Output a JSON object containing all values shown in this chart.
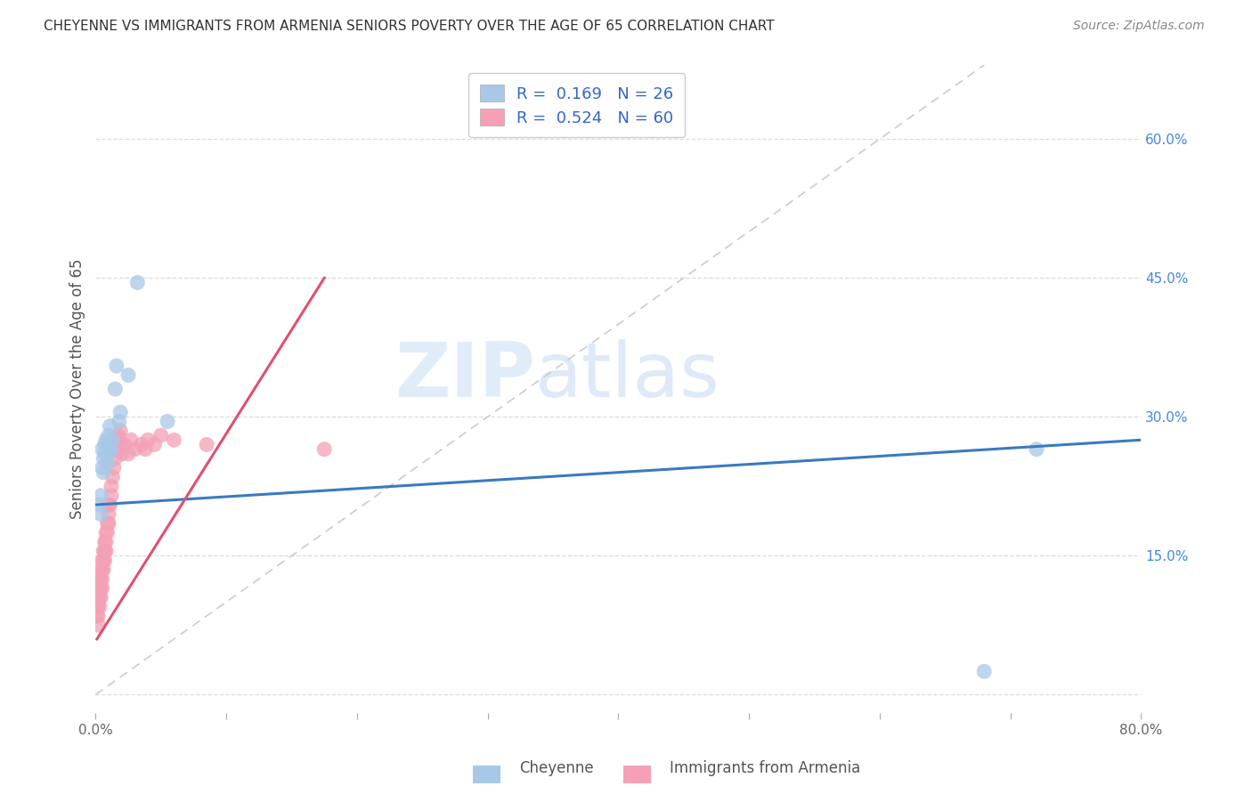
{
  "title": "CHEYENNE VS IMMIGRANTS FROM ARMENIA SENIORS POVERTY OVER THE AGE OF 65 CORRELATION CHART",
  "source": "Source: ZipAtlas.com",
  "ylabel": "Seniors Poverty Over the Age of 65",
  "legend_label1": "Cheyenne",
  "legend_label2": "Immigrants from Armenia",
  "R1": 0.169,
  "N1": 26,
  "R2": 0.524,
  "N2": 60,
  "xlim": [
    0.0,
    0.8
  ],
  "ylim": [
    -0.02,
    0.68
  ],
  "ytick_right_vals": [
    0.15,
    0.3,
    0.45,
    0.6
  ],
  "ytick_right_labels": [
    "15.0%",
    "30.0%",
    "45.0%",
    "60.0%"
  ],
  "color_cheyenne": "#a8c8e8",
  "color_armenia": "#f4a0b5",
  "color_line_cheyenne": "#3a7abf",
  "color_line_armenia": "#e05070",
  "color_diagonal": "#cccccc",
  "background": "#ffffff",
  "grid_color": "#dddddd",
  "cheyenne_x": [
    0.003,
    0.004,
    0.004,
    0.005,
    0.005,
    0.006,
    0.006,
    0.007,
    0.007,
    0.008,
    0.009,
    0.009,
    0.01,
    0.01,
    0.011,
    0.012,
    0.013,
    0.015,
    0.016,
    0.018,
    0.019,
    0.025,
    0.032,
    0.055,
    0.68,
    0.72
  ],
  "cheyenne_y": [
    0.205,
    0.195,
    0.215,
    0.265,
    0.245,
    0.255,
    0.24,
    0.26,
    0.27,
    0.275,
    0.265,
    0.25,
    0.28,
    0.26,
    0.29,
    0.265,
    0.275,
    0.33,
    0.355,
    0.295,
    0.305,
    0.345,
    0.445,
    0.295,
    0.025,
    0.265
  ],
  "armenia_x": [
    0.001,
    0.001,
    0.001,
    0.001,
    0.001,
    0.002,
    0.002,
    0.002,
    0.002,
    0.002,
    0.003,
    0.003,
    0.003,
    0.003,
    0.004,
    0.004,
    0.004,
    0.004,
    0.005,
    0.005,
    0.005,
    0.005,
    0.006,
    0.006,
    0.006,
    0.007,
    0.007,
    0.007,
    0.008,
    0.008,
    0.008,
    0.009,
    0.009,
    0.01,
    0.01,
    0.01,
    0.011,
    0.012,
    0.012,
    0.013,
    0.014,
    0.015,
    0.016,
    0.017,
    0.017,
    0.018,
    0.019,
    0.02,
    0.022,
    0.025,
    0.027,
    0.03,
    0.035,
    0.038,
    0.04,
    0.045,
    0.05,
    0.06,
    0.085,
    0.175
  ],
  "armenia_y": [
    0.085,
    0.095,
    0.105,
    0.115,
    0.125,
    0.075,
    0.085,
    0.095,
    0.105,
    0.115,
    0.095,
    0.105,
    0.115,
    0.125,
    0.105,
    0.115,
    0.125,
    0.135,
    0.115,
    0.125,
    0.135,
    0.145,
    0.135,
    0.145,
    0.155,
    0.145,
    0.155,
    0.165,
    0.155,
    0.165,
    0.175,
    0.175,
    0.185,
    0.185,
    0.195,
    0.205,
    0.205,
    0.215,
    0.225,
    0.235,
    0.245,
    0.255,
    0.265,
    0.27,
    0.28,
    0.275,
    0.285,
    0.26,
    0.27,
    0.26,
    0.275,
    0.265,
    0.27,
    0.265,
    0.275,
    0.27,
    0.28,
    0.275,
    0.27,
    0.265
  ],
  "cheyenne_line_x": [
    0.0,
    0.8
  ],
  "cheyenne_line_y": [
    0.205,
    0.275
  ],
  "armenia_line_x": [
    0.001,
    0.175
  ],
  "armenia_line_y": [
    0.06,
    0.45
  ]
}
